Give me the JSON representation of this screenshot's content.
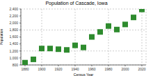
{
  "chart_data": {
    "type": "scatter",
    "title": "Population of Cascade, Iowa",
    "x_label": "Census Year",
    "y_label": "Population",
    "x": [
      1880,
      1890,
      1900,
      1910,
      1920,
      1930,
      1940,
      1950,
      1960,
      1970,
      1980,
      1990,
      2000,
      2010,
      2020
    ],
    "values": [
      865,
      960,
      1270,
      1270,
      1250,
      1230,
      1360,
      1300,
      1601,
      1744,
      1912,
      1812,
      1958,
      2159,
      2386
    ],
    "color": "#2e8b2e",
    "marker": "square",
    "grid": true,
    "xlim": [
      1875,
      2025
    ],
    "xticks": [
      1880,
      1900,
      1920,
      1940,
      1960,
      1980,
      2000,
      2020
    ],
    "ylim": [
      800,
      2400
    ],
    "yticks": [
      800,
      {
        "value": 1000,
        "label": "1,000"
      },
      {
        "value": 1200,
        "label": "1,200"
      },
      {
        "value": 1400,
        "label": "1,400"
      },
      {
        "value": 1600,
        "label": "1,600"
      },
      {
        "value": 1800,
        "label": "1,800"
      },
      {
        "value": 2000,
        "label": "2,000"
      },
      {
        "value": 2200,
        "label": "2,200"
      },
      {
        "value": 2400,
        "label": "2,400"
      }
    ]
  }
}
